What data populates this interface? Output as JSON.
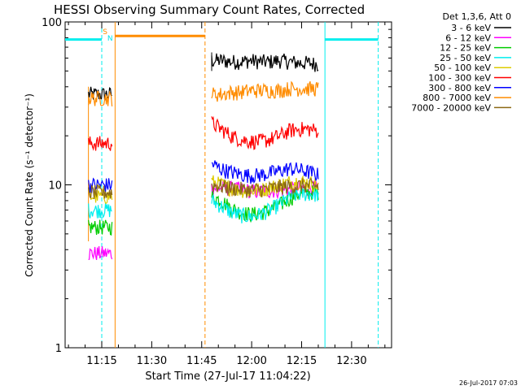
{
  "chart_data": {
    "type": "line",
    "title": "HESSI Observing Summary Count Rates, Corrected",
    "xlabel": "Start Time (27-Jul-17 11:04:22)",
    "ylabel": "Corrected Count Rate (s⁻¹ detector⁻¹)",
    "y_scale": "log",
    "ylim": [
      1,
      100
    ],
    "xlim": [
      "11:04",
      "12:42"
    ],
    "x_tick_labels": [
      "11:15",
      "11:30",
      "11:45",
      "12:00",
      "12:15",
      "12:30"
    ],
    "y_tick_labels": [
      "1",
      "10",
      "100"
    ],
    "grid": false,
    "legend_placement": "right",
    "legend_title": "Det 1,3,6, Att 0",
    "timestamp": "26-Jul-2017 07:03",
    "markers": [
      {
        "label": "S",
        "time": "11:16",
        "color": "#ff8c00"
      },
      {
        "label": "N",
        "time": "11:17.5",
        "color": "#00e5ee"
      }
    ],
    "series": [
      {
        "name": "3 - 6 keV",
        "color": "#000000",
        "seg1": 36,
        "seg2": [
          58,
          58,
          57,
          57,
          58,
          57,
          57,
          58,
          57,
          56,
          56,
          55
        ]
      },
      {
        "name": "6 - 12 keV",
        "color": "#ff00ff",
        "seg1": 3.8,
        "seg2": [
          9.5,
          9.6,
          9.5,
          9.4,
          9.2,
          9.1,
          9.2,
          9.3,
          9.4,
          9.5,
          9.6,
          9.5
        ]
      },
      {
        "name": "12 - 25 keV",
        "color": "#00cc00",
        "seg1": 5.5,
        "seg2": [
          8.5,
          8.0,
          7.2,
          6.8,
          6.6,
          6.7,
          7.0,
          7.5,
          8.2,
          8.8,
          9.0,
          9.0
        ]
      },
      {
        "name": "25 - 50 keV",
        "color": "#00eeee",
        "seg1": 7.0,
        "seg2": [
          8.0,
          7.4,
          6.8,
          6.5,
          6.4,
          6.6,
          7.0,
          7.6,
          8.3,
          8.8,
          8.8,
          8.7
        ]
      },
      {
        "name": "50 - 100 keV",
        "color": "#ddcc00",
        "seg1": 8.5,
        "seg2": [
          10.5,
          10.0,
          9.5,
          9.3,
          9.2,
          9.3,
          9.6,
          10.0,
          10.4,
          10.5,
          10.3,
          10.0
        ]
      },
      {
        "name": "100 - 300 keV",
        "color": "#ff0000",
        "seg1": 18,
        "seg2": [
          24,
          22,
          20,
          19,
          18.5,
          18.5,
          19,
          20,
          21.5,
          22,
          22,
          21.5
        ]
      },
      {
        "name": "300 - 800 keV",
        "color": "#0000ff",
        "seg1": 10,
        "seg2": [
          13.5,
          12.5,
          12.0,
          11.6,
          11.4,
          11.5,
          11.8,
          12.2,
          12.6,
          12.4,
          12.0,
          11.5
        ]
      },
      {
        "name": "800 - 7000 keV",
        "color": "#ff8c00",
        "seg1": 34,
        "seg2": [
          36,
          36,
          37,
          37,
          38,
          38,
          38,
          38,
          39,
          39,
          39,
          39
        ]
      },
      {
        "name": "7000 - 20000 keV",
        "color": "#8b6914",
        "seg1": 9.0,
        "seg2": [
          10.0,
          9.8,
          9.6,
          9.4,
          9.3,
          9.4,
          9.5,
          9.7,
          9.8,
          9.9,
          9.9,
          9.8
        ]
      }
    ],
    "segments": [
      {
        "start": "11:11",
        "end": "11:18"
      },
      {
        "start": "11:48",
        "end": "12:20"
      }
    ],
    "flags": [
      {
        "name": "saa",
        "color": "#ff8c00",
        "start": "11:19",
        "end": "11:46",
        "level": 82
      },
      {
        "name": "night-left",
        "color": "#00eeee",
        "start": "11:04",
        "end": "11:15",
        "level": 78
      },
      {
        "name": "night-right",
        "color": "#00eeee",
        "start": "12:22",
        "end": "12:38",
        "level": 78
      }
    ]
  }
}
